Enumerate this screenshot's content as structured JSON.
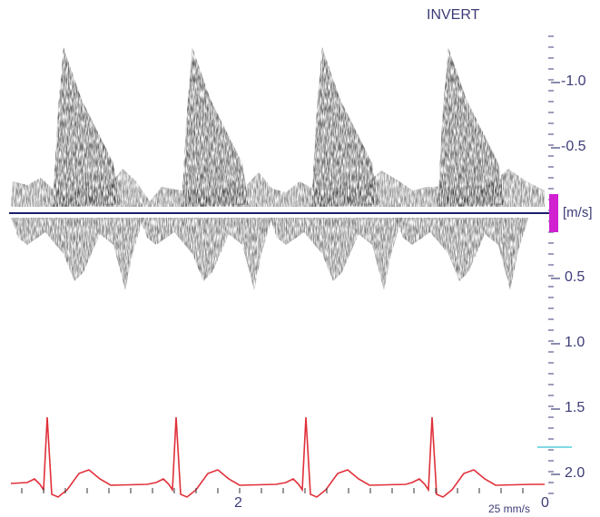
{
  "header": {
    "invert_label": "INVERT"
  },
  "scale": {
    "unit_label": "[m/s]",
    "tick_labels": [
      {
        "text": "-1.0",
        "value": -1.0
      },
      {
        "text": "-0.5",
        "value": -0.5
      },
      {
        "text": "0.5",
        "value": 0.5
      },
      {
        "text": "1.0",
        "value": 1.0
      },
      {
        "text": "1.5",
        "value": 1.5
      },
      {
        "text": "2.0",
        "value": 2.0
      }
    ],
    "marker_color": "#d020d0"
  },
  "ecg": {
    "sweep_speed_label": "25 mm/s",
    "time_marker_label": "2",
    "end_marker_label": "0",
    "trace_color": "#e0303a"
  },
  "colors": {
    "baseline": "#1e1e6e",
    "scale_text": "#3c3c78",
    "cyan_marker": "#33c4d6"
  }
}
